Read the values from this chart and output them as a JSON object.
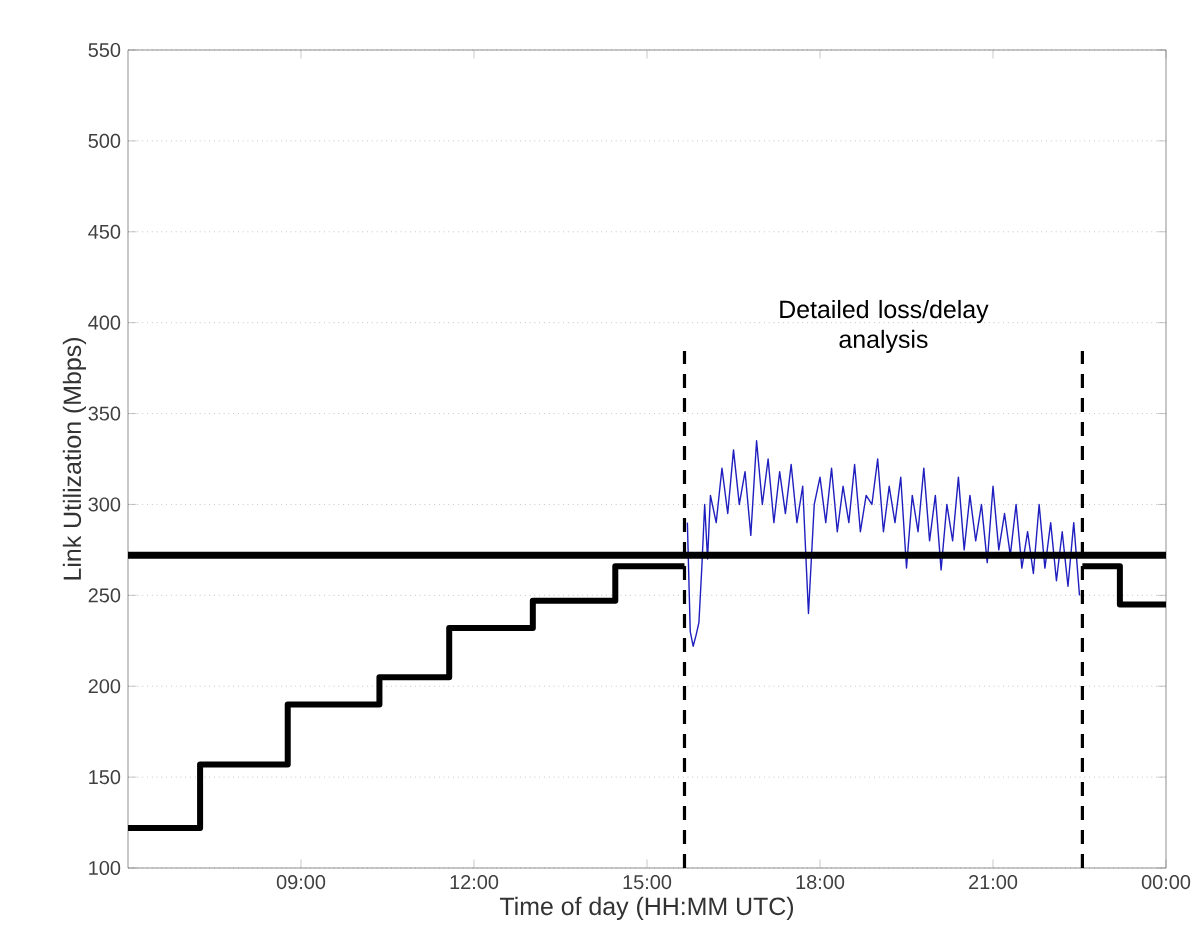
{
  "chart_data": {
    "type": "line",
    "xlabel": "Time of day (HH:MM UTC)",
    "ylabel": "Link Utilization (Mbps)",
    "xlim": [
      6,
      24
    ],
    "xticks": [
      {
        "value": 9,
        "label": "09:00"
      },
      {
        "value": 12,
        "label": "12:00"
      },
      {
        "value": 15,
        "label": "15:00"
      },
      {
        "value": 18,
        "label": "18:00"
      },
      {
        "value": 21,
        "label": "21:00"
      },
      {
        "value": 24,
        "label": "00:00"
      }
    ],
    "ylim": [
      100,
      550
    ],
    "yticks": [
      100,
      150,
      200,
      250,
      300,
      350,
      400,
      450,
      500,
      550
    ],
    "grid": "y",
    "series": [
      {
        "type": "step",
        "color": "#000000",
        "x": [
          6,
          7.25,
          8.77,
          10.36,
          11.57,
          13.02,
          14.45,
          15.65,
          19,
          22.55,
          23.2,
          24
        ],
        "values": [
          122,
          157,
          190,
          205,
          232,
          247,
          266,
          266,
          null,
          266,
          245,
          245
        ]
      },
      {
        "color": "#1f1fbf",
        "x": [
          15.7,
          15.75,
          15.8,
          15.85,
          15.9,
          15.95,
          16.0,
          16.05,
          16.1,
          16.2,
          16.3,
          16.4,
          16.5,
          16.6,
          16.7,
          16.8,
          16.9,
          17.0,
          17.1,
          17.2,
          17.3,
          17.4,
          17.5,
          17.6,
          17.7,
          17.8,
          17.9,
          18.0,
          18.1,
          18.2,
          18.3,
          18.4,
          18.5,
          18.6,
          18.7,
          18.8,
          18.9,
          19.0,
          19.1,
          19.2,
          19.3,
          19.4,
          19.5,
          19.6,
          19.7,
          19.8,
          19.9,
          20.0,
          20.1,
          20.2,
          20.3,
          20.4,
          20.5,
          20.6,
          20.7,
          20.8,
          20.9,
          21.0,
          21.1,
          21.2,
          21.3,
          21.4,
          21.5,
          21.6,
          21.7,
          21.8,
          21.9,
          22.0,
          22.1,
          22.2,
          22.3,
          22.4,
          22.5
        ],
        "values": [
          290,
          230,
          222,
          228,
          235,
          265,
          300,
          270,
          305,
          290,
          320,
          295,
          330,
          300,
          318,
          283,
          335,
          300,
          325,
          290,
          318,
          295,
          322,
          290,
          310,
          240,
          300,
          315,
          290,
          320,
          285,
          310,
          290,
          322,
          285,
          305,
          300,
          325,
          285,
          310,
          290,
          315,
          265,
          305,
          285,
          320,
          280,
          305,
          264,
          300,
          280,
          315,
          275,
          305,
          280,
          300,
          268,
          310,
          275,
          295,
          272,
          300,
          265,
          285,
          262,
          300,
          265,
          290,
          258,
          285,
          255,
          290,
          250
        ]
      }
    ],
    "ref_lines": [
      {
        "axis": "y",
        "value": 272,
        "color": "#000000",
        "line_style": "solid"
      },
      {
        "axis": "x",
        "value": 15.65,
        "color": "#000000",
        "line_style": "dashed"
      },
      {
        "axis": "x",
        "value": 22.55,
        "color": "#000000",
        "line_style": "dashed"
      }
    ],
    "annotations": [
      "Detailed loss/delay analysis"
    ]
  }
}
